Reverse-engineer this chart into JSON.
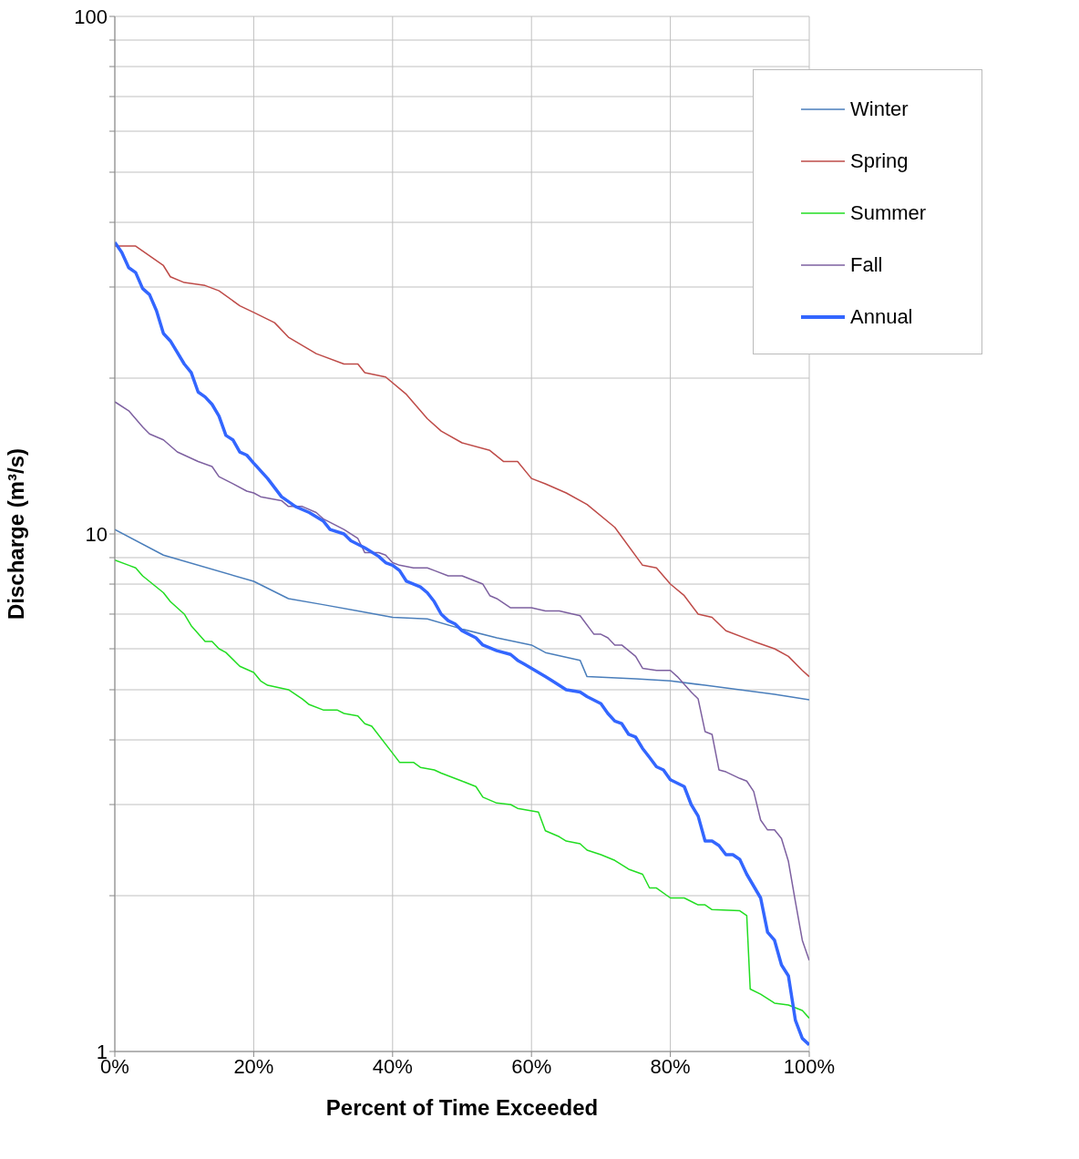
{
  "chart_data": {
    "type": "line",
    "xlabel": "Percent of Time Exceeded",
    "ylabel": "Discharge (m³/s)",
    "log": "y",
    "grid": true,
    "legend": "top right",
    "marker": "none",
    "xlim": [
      0,
      100
    ],
    "xticks": [
      {
        "value": 0,
        "label": "0%"
      },
      {
        "value": 20,
        "label": "20%"
      },
      {
        "value": 40,
        "label": "40%"
      },
      {
        "value": 60,
        "label": "60%"
      },
      {
        "value": 80,
        "label": "80%"
      },
      {
        "value": 100,
        "label": "100%"
      }
    ],
    "ylim": [
      1,
      100
    ],
    "yticks": [
      1,
      {
        "value": 2,
        "label": null
      },
      {
        "value": 3,
        "label": null
      },
      {
        "value": 4,
        "label": null
      },
      {
        "value": 5,
        "label": null
      },
      {
        "value": 6,
        "label": null
      },
      {
        "value": 7,
        "label": null
      },
      {
        "value": 8,
        "label": null
      },
      {
        "value": 9,
        "label": null
      },
      10,
      {
        "value": 20,
        "label": null
      },
      {
        "value": 30,
        "label": null
      },
      {
        "value": 40,
        "label": null
      },
      {
        "value": 50,
        "label": null
      },
      {
        "value": 60,
        "label": null
      },
      {
        "value": 70,
        "label": null
      },
      {
        "value": 80,
        "label": null
      },
      {
        "value": 90,
        "label": null
      },
      100
    ],
    "series": [
      {
        "name": "Winter",
        "color": "#4a7ebb",
        "x": [
          0,
          7,
          20,
          25,
          30,
          35,
          40,
          45,
          50,
          55,
          60,
          62,
          67,
          68,
          75,
          80,
          85,
          90,
          95,
          100
        ],
        "values": [
          10.2,
          9.1,
          8.1,
          7.5,
          7.3,
          7.1,
          6.9,
          6.85,
          6.55,
          6.3,
          6.1,
          5.9,
          5.7,
          5.3,
          5.25,
          5.2,
          5.1,
          5.0,
          4.9,
          4.78
        ]
      },
      {
        "name": "Spring",
        "color": "#be4b48",
        "x": [
          0,
          3,
          7,
          8,
          10,
          13,
          15,
          18,
          20,
          23,
          25,
          29,
          33,
          35,
          36,
          39,
          42,
          45,
          47,
          50,
          54,
          56,
          58,
          60,
          62,
          65,
          68,
          72,
          76,
          78,
          80,
          82,
          84,
          86,
          88,
          92,
          95,
          97,
          99,
          100
        ],
        "values": [
          36,
          36,
          33,
          31.4,
          30.6,
          30.2,
          29.5,
          27.6,
          26.8,
          25.6,
          24,
          22.3,
          21.3,
          21.3,
          20.5,
          20.1,
          18.6,
          16.7,
          15.8,
          15,
          14.5,
          13.8,
          13.8,
          12.8,
          12.5,
          12,
          11.4,
          10.3,
          8.7,
          8.6,
          8.0,
          7.6,
          7,
          6.9,
          6.5,
          6.2,
          6.0,
          5.8,
          5.45,
          5.3
        ]
      },
      {
        "name": "Summer",
        "color": "#22dd22",
        "x": [
          0,
          2,
          3,
          4,
          7,
          8,
          10,
          11,
          13,
          14,
          15,
          16,
          18,
          20,
          21,
          22,
          25,
          27,
          28,
          30,
          32,
          33,
          35,
          36,
          37,
          40,
          41,
          43,
          44,
          46,
          47,
          50,
          52,
          53,
          55,
          57,
          58,
          61,
          62,
          64,
          65,
          67,
          68,
          70,
          72,
          74,
          76,
          77,
          78,
          80,
          82,
          84,
          85,
          86,
          90,
          91,
          91.5,
          93,
          95,
          97,
          99,
          100
        ],
        "values": [
          8.9,
          8.7,
          8.6,
          8.3,
          7.7,
          7.4,
          7,
          6.65,
          6.2,
          6.2,
          6.0,
          5.9,
          5.55,
          5.4,
          5.2,
          5.1,
          5.0,
          4.8,
          4.68,
          4.57,
          4.57,
          4.5,
          4.45,
          4.3,
          4.25,
          3.77,
          3.62,
          3.62,
          3.54,
          3.5,
          3.45,
          3.33,
          3.25,
          3.1,
          3.02,
          3.0,
          2.95,
          2.9,
          2.67,
          2.6,
          2.55,
          2.52,
          2.45,
          2.4,
          2.34,
          2.25,
          2.2,
          2.07,
          2.07,
          1.98,
          1.98,
          1.92,
          1.92,
          1.88,
          1.87,
          1.83,
          1.32,
          1.29,
          1.24,
          1.23,
          1.2,
          1.16
        ]
      },
      {
        "name": "Fall",
        "color": "#7d60a0",
        "x": [
          0,
          2,
          4,
          5,
          7,
          9,
          12,
          14,
          15,
          17,
          19,
          20,
          21,
          24,
          25,
          27,
          29,
          30,
          33,
          35,
          36,
          38,
          39,
          40,
          41,
          43,
          45,
          46,
          48,
          50,
          52,
          53,
          54,
          55,
          57,
          60,
          62,
          64,
          66,
          67,
          69,
          70,
          71,
          72,
          73,
          75,
          76,
          78,
          80,
          81,
          83,
          84,
          85,
          86,
          87,
          88,
          90,
          91,
          92,
          93,
          94,
          95,
          96,
          97,
          98,
          99,
          100
        ],
        "values": [
          18,
          17.3,
          16.1,
          15.6,
          15.2,
          14.4,
          13.8,
          13.5,
          12.9,
          12.5,
          12.1,
          12.0,
          11.8,
          11.6,
          11.3,
          11.3,
          11.0,
          10.7,
          10.2,
          9.8,
          9.2,
          9.2,
          9.1,
          8.8,
          8.7,
          8.6,
          8.6,
          8.5,
          8.3,
          8.3,
          8.1,
          8.0,
          7.6,
          7.5,
          7.2,
          7.2,
          7.1,
          7.1,
          7.0,
          6.95,
          6.4,
          6.4,
          6.3,
          6.1,
          6.1,
          5.8,
          5.5,
          5.45,
          5.45,
          5.3,
          4.95,
          4.8,
          4.15,
          4.1,
          3.5,
          3.47,
          3.37,
          3.33,
          3.18,
          2.8,
          2.68,
          2.68,
          2.58,
          2.33,
          1.95,
          1.64,
          1.5
        ]
      },
      {
        "name": "Annual",
        "color": "#3366ff",
        "x": [
          0,
          1,
          2,
          3,
          4,
          5,
          6,
          7,
          8,
          10,
          11,
          12,
          13,
          14,
          15,
          16,
          17,
          18,
          19,
          20,
          22,
          24,
          26,
          28,
          30,
          31,
          33,
          34,
          36,
          38,
          39,
          40,
          41,
          42,
          44,
          45,
          46,
          47,
          48,
          49,
          50,
          52,
          53,
          55,
          57,
          58,
          59,
          60,
          62,
          63,
          65,
          67,
          68,
          70,
          71,
          72,
          73,
          74,
          75,
          76,
          77,
          78,
          79,
          80,
          81,
          82,
          83,
          84,
          85,
          86,
          87,
          88,
          89,
          90,
          91,
          93,
          94,
          95,
          96,
          97,
          98,
          99,
          100
        ],
        "values": [
          36.6,
          35,
          32.7,
          32,
          29.8,
          29,
          27,
          24.4,
          23.6,
          21.3,
          20.5,
          18.8,
          18.4,
          17.8,
          16.9,
          15.5,
          15.2,
          14.4,
          14.2,
          13.7,
          12.8,
          11.8,
          11.3,
          11.0,
          10.6,
          10.2,
          10.0,
          9.7,
          9.4,
          9.05,
          8.8,
          8.7,
          8.5,
          8.1,
          7.9,
          7.7,
          7.4,
          7.0,
          6.8,
          6.7,
          6.5,
          6.3,
          6.1,
          5.95,
          5.85,
          5.7,
          5.6,
          5.5,
          5.3,
          5.2,
          5.0,
          4.95,
          4.85,
          4.7,
          4.5,
          4.35,
          4.3,
          4.1,
          4.05,
          3.85,
          3.7,
          3.55,
          3.5,
          3.35,
          3.3,
          3.25,
          3.0,
          2.85,
          2.55,
          2.55,
          2.5,
          2.4,
          2.4,
          2.35,
          2.2,
          1.98,
          1.7,
          1.64,
          1.47,
          1.4,
          1.15,
          1.06,
          1.03
        ]
      }
    ]
  }
}
